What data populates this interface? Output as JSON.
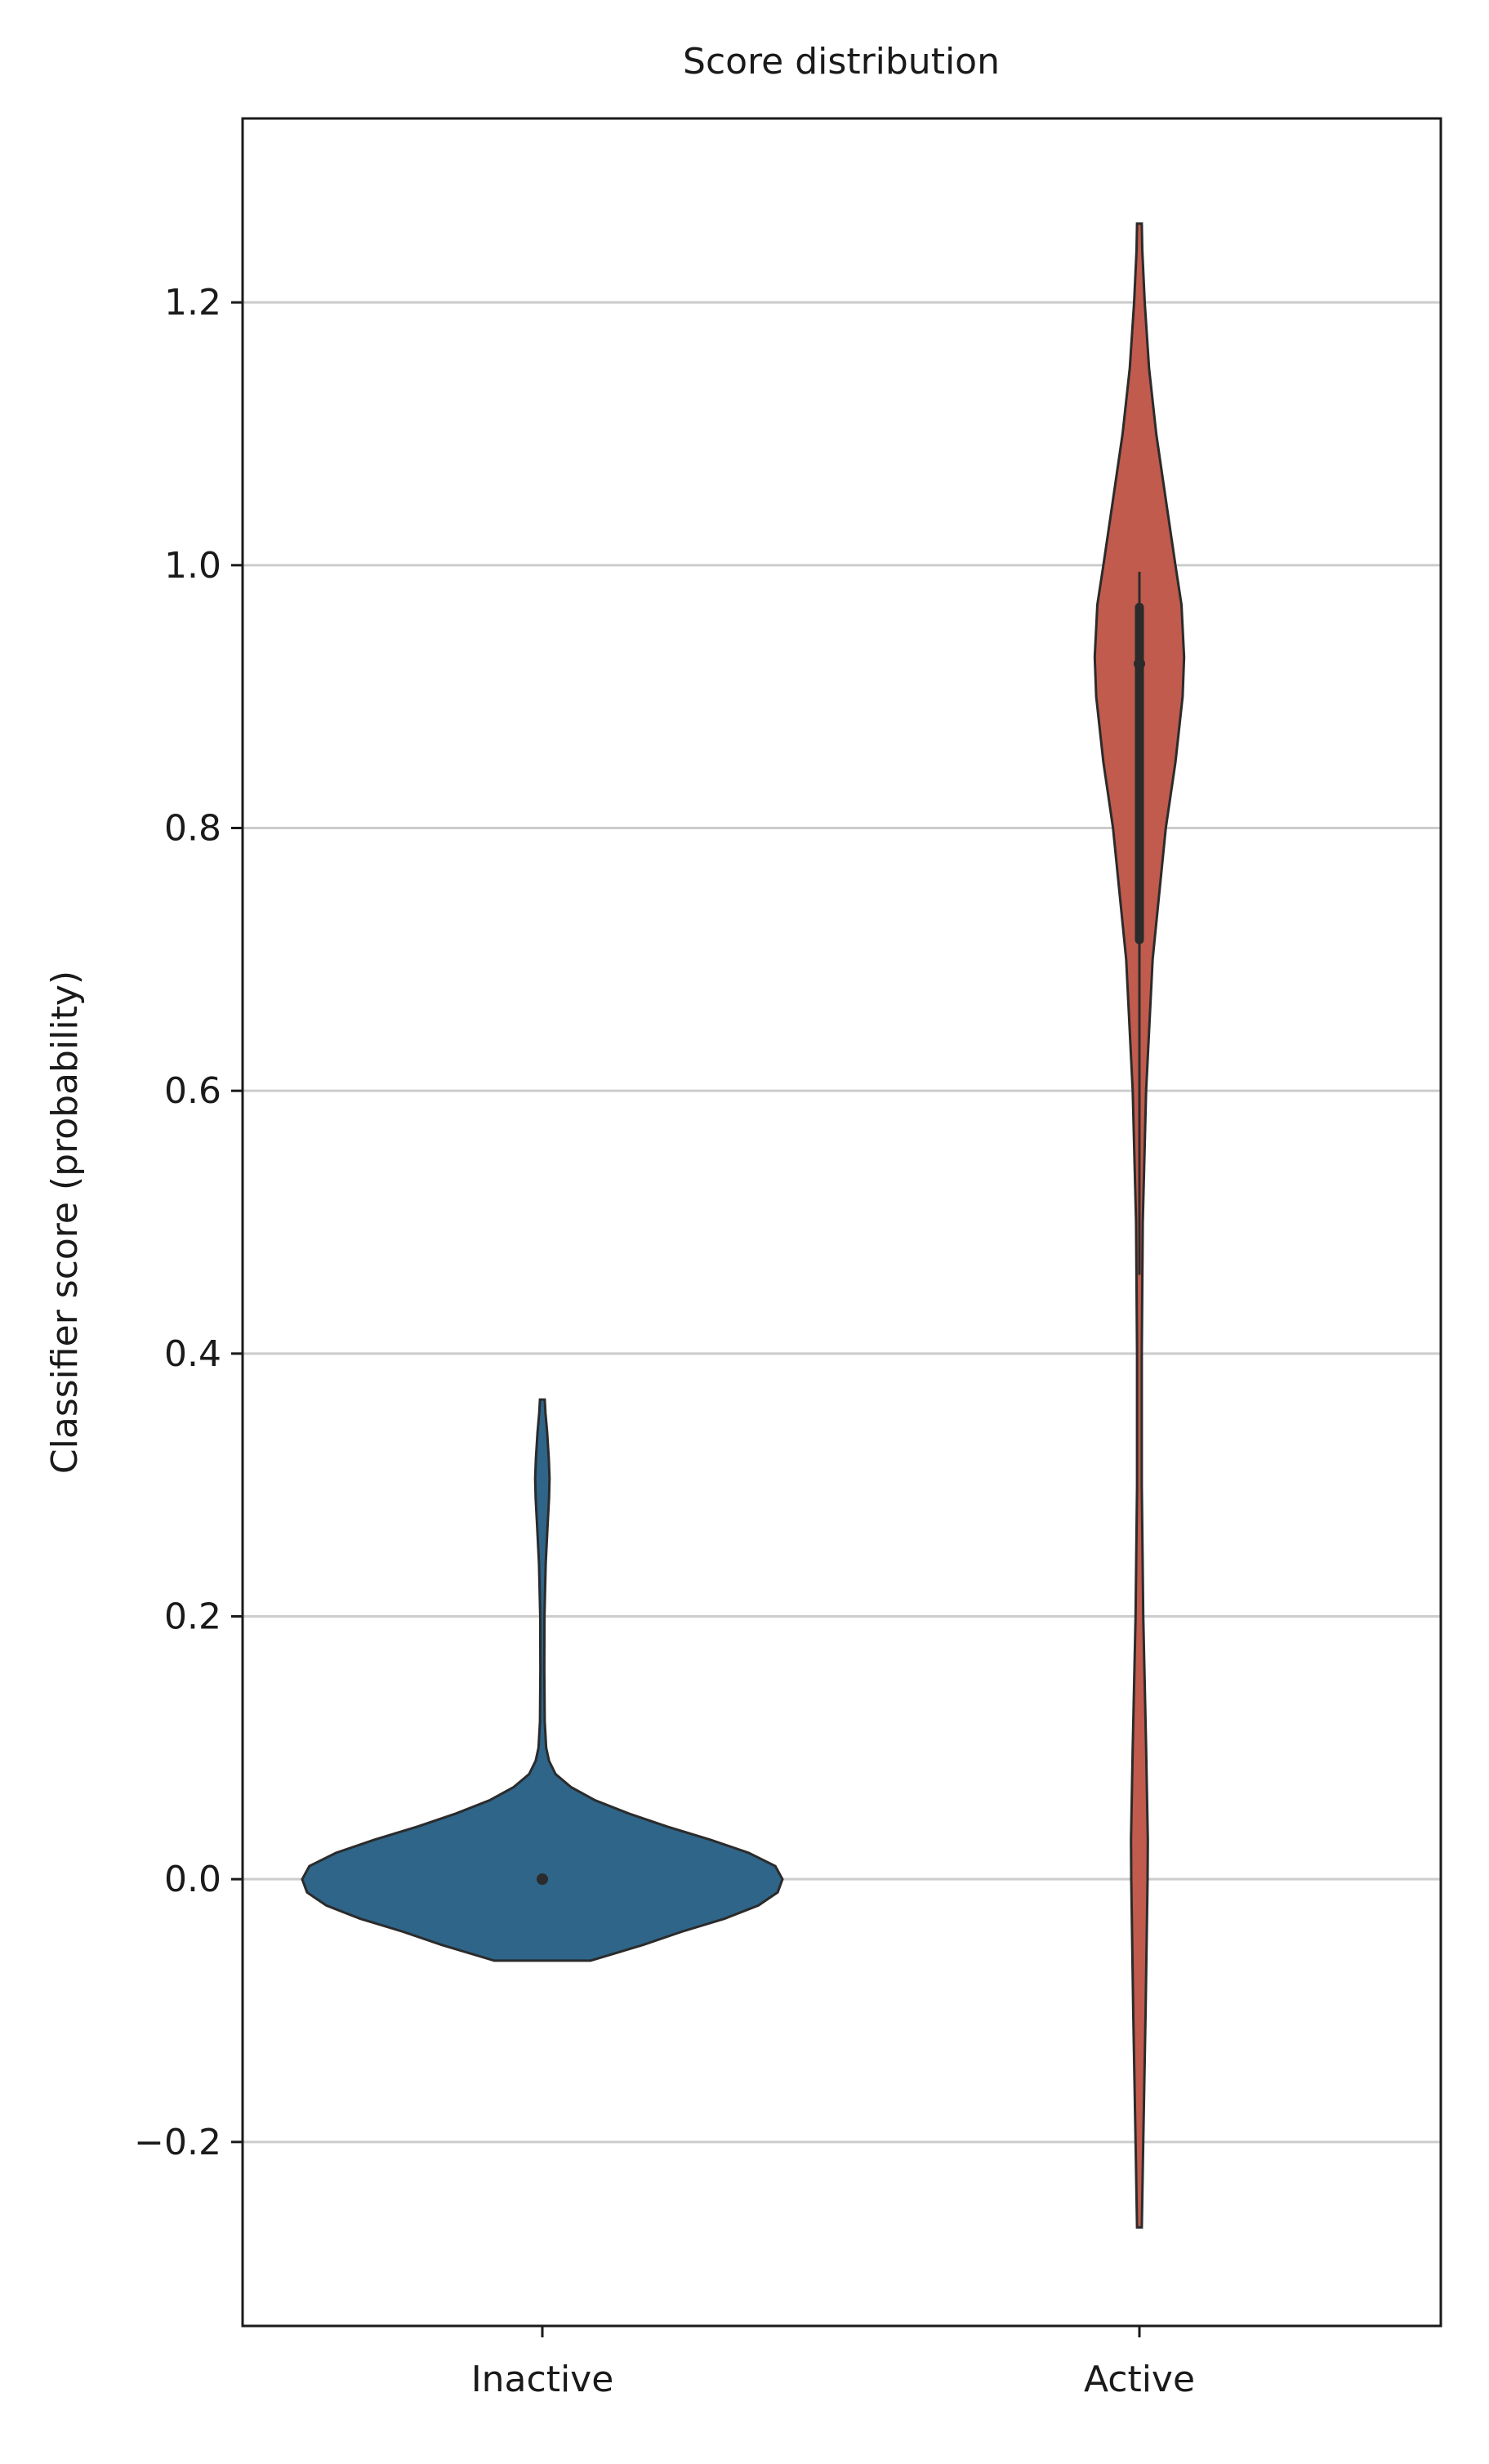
{
  "chart_data": {
    "type": "violin",
    "title": "Score distribution",
    "xlabel": "",
    "ylabel": "Classifier score (probability)",
    "ylim": [
      -0.34,
      1.34
    ],
    "yticks": [
      -0.2,
      0.0,
      0.2,
      0.4,
      0.6,
      0.8,
      1.0,
      1.2
    ],
    "ytick_labels": [
      "−0.2",
      "0.0",
      "0.2",
      "0.4",
      "0.6",
      "0.8",
      "1.0",
      "1.2"
    ],
    "grid": "horizontal",
    "categories": [
      "Inactive",
      "Active"
    ],
    "series": [
      {
        "category": "Inactive",
        "color": "#2e6589",
        "min": -0.062,
        "max": 0.365,
        "median": 0.0,
        "q1": 0.0,
        "q3": 0.0,
        "whisker_low": 0.0,
        "whisker_high": 0.0,
        "density": [
          [
            -0.062,
            0.2
          ],
          [
            -0.05,
            0.42
          ],
          [
            -0.04,
            0.58
          ],
          [
            -0.03,
            0.76
          ],
          [
            -0.02,
            0.9
          ],
          [
            -0.01,
            0.98
          ],
          [
            0.0,
            1.0
          ],
          [
            0.01,
            0.97
          ],
          [
            0.02,
            0.86
          ],
          [
            0.03,
            0.7
          ],
          [
            0.04,
            0.52
          ],
          [
            0.05,
            0.36
          ],
          [
            0.06,
            0.22
          ],
          [
            0.07,
            0.12
          ],
          [
            0.08,
            0.055
          ],
          [
            0.09,
            0.028
          ],
          [
            0.1,
            0.016
          ],
          [
            0.12,
            0.01
          ],
          [
            0.16,
            0.008
          ],
          [
            0.2,
            0.009
          ],
          [
            0.24,
            0.014
          ],
          [
            0.27,
            0.022
          ],
          [
            0.29,
            0.028
          ],
          [
            0.305,
            0.03
          ],
          [
            0.32,
            0.027
          ],
          [
            0.34,
            0.02
          ],
          [
            0.355,
            0.013
          ],
          [
            0.365,
            0.01
          ]
        ]
      },
      {
        "category": "Active",
        "color": "#c05b4d",
        "min": -0.265,
        "max": 1.26,
        "median": 0.925,
        "q1": 0.715,
        "q3": 0.968,
        "whisker_low": 0.46,
        "whisker_high": 0.995,
        "density": [
          [
            -0.265,
            0.01
          ],
          [
            -0.2,
            0.016
          ],
          [
            -0.1,
            0.026
          ],
          [
            0.0,
            0.034
          ],
          [
            0.03,
            0.035
          ],
          [
            0.1,
            0.028
          ],
          [
            0.2,
            0.016
          ],
          [
            0.3,
            0.01
          ],
          [
            0.4,
            0.01
          ],
          [
            0.5,
            0.014
          ],
          [
            0.6,
            0.028
          ],
          [
            0.7,
            0.055
          ],
          [
            0.8,
            0.11
          ],
          [
            0.85,
            0.15
          ],
          [
            0.9,
            0.18
          ],
          [
            0.93,
            0.186
          ],
          [
            0.97,
            0.175
          ],
          [
            1.0,
            0.15
          ],
          [
            1.05,
            0.11
          ],
          [
            1.1,
            0.07
          ],
          [
            1.15,
            0.04
          ],
          [
            1.2,
            0.022
          ],
          [
            1.24,
            0.012
          ],
          [
            1.26,
            0.01
          ]
        ]
      }
    ]
  }
}
